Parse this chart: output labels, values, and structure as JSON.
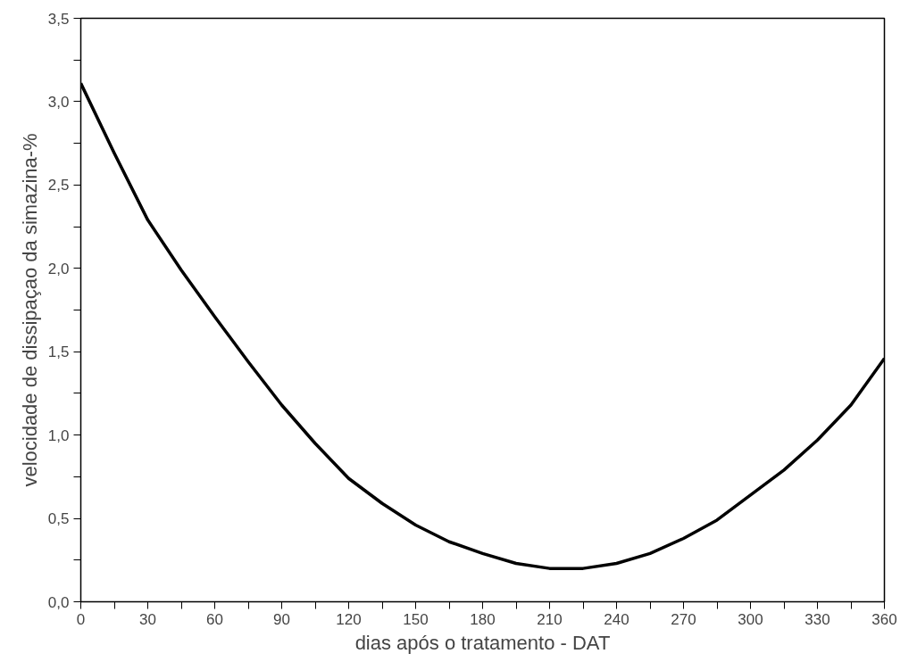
{
  "chart_data": {
    "type": "line",
    "xlabel": "dias após o tratamento - DAT",
    "ylabel": "velocidade de dissipaçao da simazina-%",
    "x": [
      0,
      15,
      30,
      45,
      60,
      75,
      90,
      105,
      120,
      135,
      150,
      165,
      180,
      195,
      210,
      225,
      240,
      255,
      270,
      285,
      300,
      315,
      330,
      345,
      360
    ],
    "series": [
      {
        "color": "#000000",
        "values": [
          3.11,
          2.69,
          2.29,
          1.99,
          1.71,
          1.44,
          1.18,
          0.95,
          0.74,
          0.59,
          0.46,
          0.36,
          0.29,
          0.23,
          0.2,
          0.2,
          0.23,
          0.29,
          0.38,
          0.49,
          0.64,
          0.79,
          0.97,
          1.18,
          1.46
        ]
      }
    ],
    "xlim": [
      0,
      360
    ],
    "ylim": [
      0,
      3.5
    ],
    "xticks": [
      0,
      {
        "value": 15,
        "label": null
      },
      30,
      {
        "value": 45,
        "label": null
      },
      60,
      {
        "value": 75,
        "label": null
      },
      90,
      {
        "value": 105,
        "label": null
      },
      120,
      {
        "value": 135,
        "label": null
      },
      150,
      {
        "value": 165,
        "label": null
      },
      180,
      {
        "value": 195,
        "label": null
      },
      210,
      {
        "value": 225,
        "label": null
      },
      240,
      {
        "value": 255,
        "label": null
      },
      270,
      {
        "value": 285,
        "label": null
      },
      300,
      {
        "value": 315,
        "label": null
      },
      330,
      {
        "value": 345,
        "label": null
      },
      360
    ],
    "yticks": [
      {
        "value": 0,
        "label": "0,0"
      },
      {
        "value": 0.25,
        "label": null
      },
      {
        "value": 0.5,
        "label": "0,5"
      },
      {
        "value": 0.75,
        "label": null
      },
      {
        "value": 1,
        "label": "1,0"
      },
      {
        "value": 1.25,
        "label": null
      },
      {
        "value": 1.5,
        "label": "1,5"
      },
      {
        "value": 1.75,
        "label": null
      },
      {
        "value": 2,
        "label": "2,0"
      },
      {
        "value": 2.25,
        "label": null
      },
      {
        "value": 2.5,
        "label": "2,5"
      },
      {
        "value": 2.75,
        "label": null
      },
      {
        "value": 3,
        "label": "3,0"
      },
      {
        "value": 3.25,
        "label": null
      },
      {
        "value": 3.5,
        "label": "3,5"
      }
    ],
    "grid": false,
    "marker": "none",
    "line_style": "solid"
  }
}
